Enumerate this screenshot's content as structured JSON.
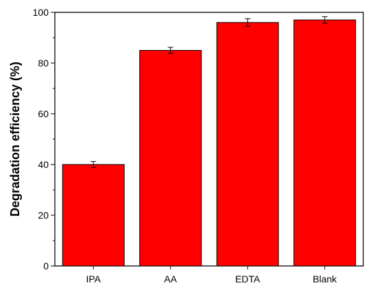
{
  "chart_data": {
    "type": "bar",
    "categories": [
      "IPA",
      "AA",
      "EDTA",
      "Blank"
    ],
    "values": [
      40,
      85,
      96,
      97
    ],
    "errors": [
      1.2,
      1.2,
      1.5,
      1.3
    ],
    "title": "",
    "xlabel": "",
    "ylabel": "Degradation efficiency (%)",
    "ylim": [
      0,
      100
    ],
    "yticks": [
      0,
      20,
      40,
      60,
      80,
      100
    ],
    "ytick_labels": [
      "0",
      "20",
      "40",
      "60",
      "80",
      "100"
    ],
    "grid": false,
    "legend": "none",
    "colors": {
      "bar_fill": "#ff0000",
      "bar_stroke": "#000000",
      "error_bar": "#000000",
      "axis": "#000000"
    }
  }
}
